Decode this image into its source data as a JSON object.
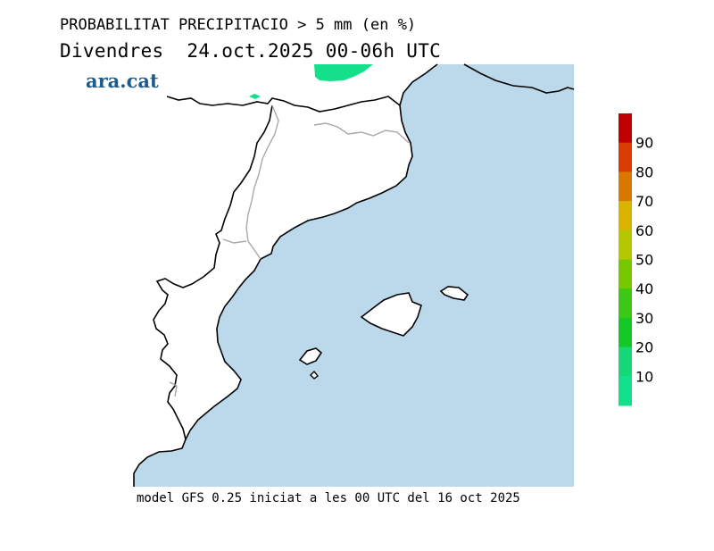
{
  "header": {
    "title": "PROBABILITAT PRECIPITACIO > 5 mm (en %)",
    "subtitle": "Divendres  24.oct.2025 00-06h UTC"
  },
  "logo": {
    "text": "ara.cat"
  },
  "footer": {
    "text": "model GFS 0.25 iniciat a les 00 UTC del 16 oct 2025"
  },
  "colorbar": {
    "labels": [
      "90",
      "80",
      "70",
      "60",
      "50",
      "40",
      "30",
      "20",
      "10"
    ],
    "colors": [
      "#c00000",
      "#d83c00",
      "#d87800",
      "#d8b400",
      "#b4c800",
      "#78c800",
      "#3cc814",
      "#14c828",
      "#14d878",
      "#14e08c"
    ]
  },
  "map": {
    "sea_color": "#bcd9ec",
    "land_color": "#ffffff",
    "coast_color": "#000000",
    "border_color": "#a8a8a8",
    "precip_area_color": "#14e08c"
  }
}
